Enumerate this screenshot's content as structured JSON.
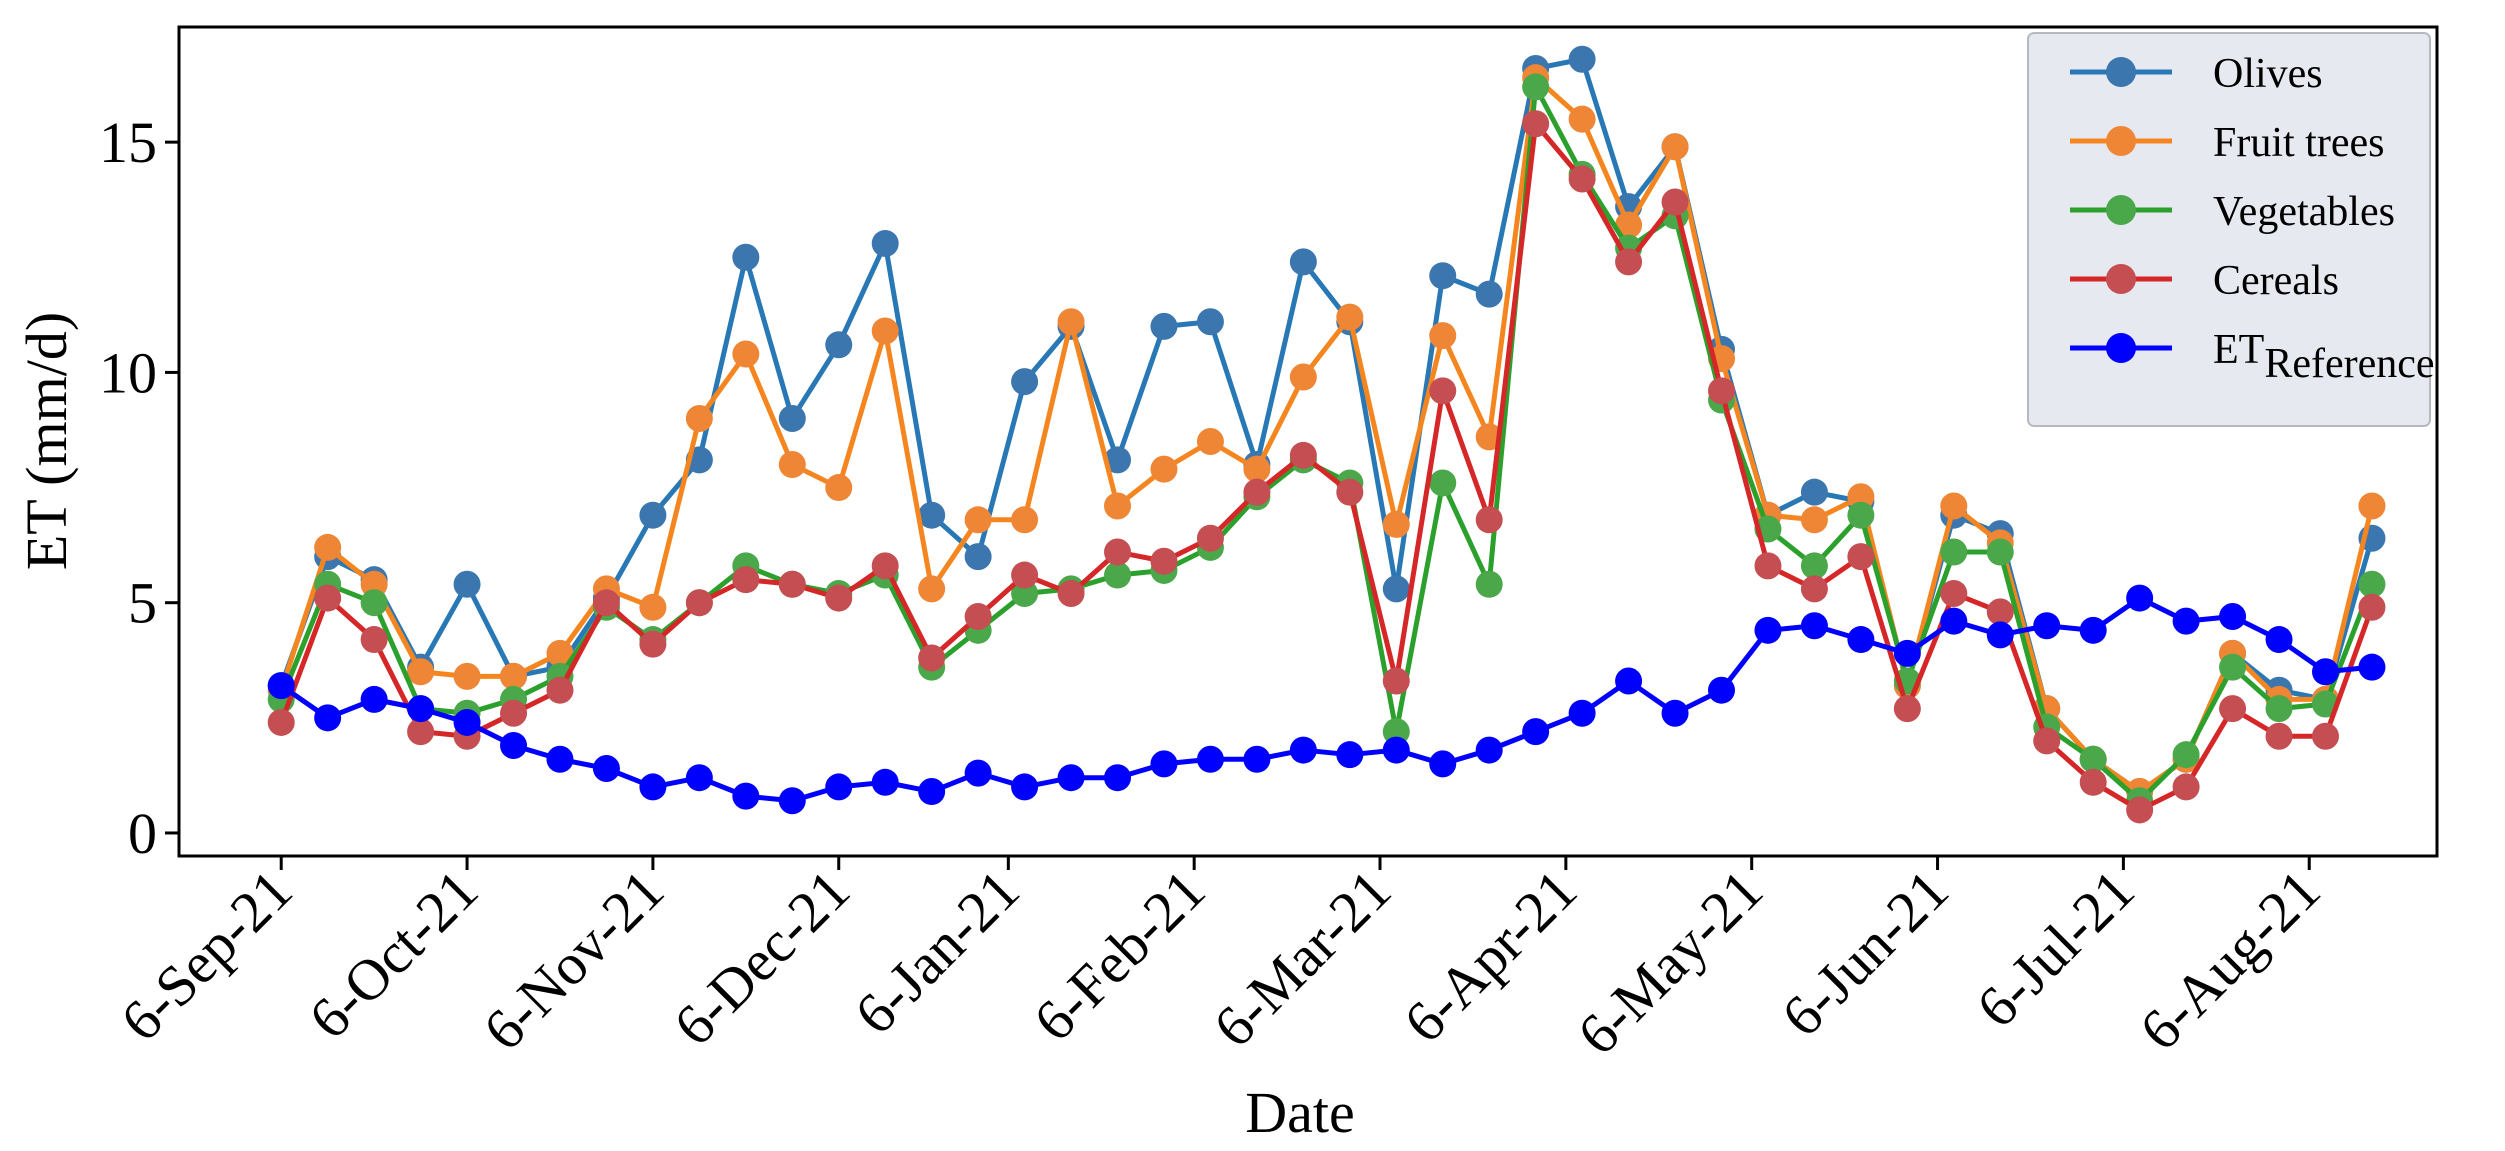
{
  "chart_data": {
    "type": "line",
    "title": "",
    "xlabel": "Date",
    "ylabel": "ET (mm/d)",
    "ylim": [
      -0.5,
      17.5
    ],
    "yticks": [
      0,
      5,
      10,
      15
    ],
    "x_index_range": [
      -2.2,
      46.4
    ],
    "xtick_labels": [
      {
        "label": "6-Sep-21",
        "index": 0
      },
      {
        "label": "6-Oct-21",
        "index": 4
      },
      {
        "label": "6-Nov-21",
        "index": 8
      },
      {
        "label": "6-Dec-21",
        "index": 12
      },
      {
        "label": "6-Jan-21",
        "index": 15.65
      },
      {
        "label": "6-Feb-21",
        "index": 19.65
      },
      {
        "label": "6-Mar-21",
        "index": 23.65
      },
      {
        "label": "6-Apr-21",
        "index": 27.65
      },
      {
        "label": "6-May-21",
        "index": 31.65
      },
      {
        "label": "6-Jun-21",
        "index": 35.65
      },
      {
        "label": "6-Jul-21",
        "index": 39.65
      },
      {
        "label": "6-Aug-21",
        "index": 43.65
      }
    ],
    "legend_position": "top-right",
    "series": [
      {
        "name": "Olives",
        "color": "#2878b5",
        "marker_color": "#3b76af",
        "values": [
          3.2,
          6.0,
          5.5,
          3.6,
          5.4,
          3.4,
          3.6,
          5.1,
          6.9,
          8.1,
          12.5,
          9.0,
          10.6,
          12.8,
          6.9,
          6.0,
          9.8,
          11.0,
          8.1,
          11.0,
          11.1,
          8.0,
          12.4,
          11.1,
          5.3,
          12.1,
          11.7,
          16.6,
          16.8,
          13.6,
          14.9,
          10.5,
          6.9,
          7.4,
          7.2,
          3.2,
          6.9,
          6.5,
          2.7,
          1.6,
          0.9,
          1.6,
          3.9,
          3.1,
          2.9,
          6.4
        ]
      },
      {
        "name": "Fruit trees",
        "color": "#f5861f",
        "marker_color": "#ef8636",
        "values": [
          3.1,
          6.2,
          5.4,
          3.5,
          3.4,
          3.4,
          3.9,
          5.3,
          4.9,
          9.0,
          10.4,
          8.0,
          7.5,
          10.9,
          5.3,
          6.8,
          6.8,
          11.1,
          7.1,
          7.9,
          8.5,
          7.9,
          9.9,
          11.2,
          6.7,
          10.8,
          8.6,
          16.4,
          15.5,
          13.2,
          14.9,
          10.3,
          6.9,
          6.8,
          7.3,
          3.2,
          7.1,
          6.3,
          2.7,
          1.6,
          0.9,
          1.6,
          3.9,
          2.9,
          2.9,
          7.1
        ]
      },
      {
        "name": "Vegetables",
        "color": "#2ca02c",
        "marker_color": "#4aa84a",
        "values": [
          2.9,
          5.4,
          5.0,
          2.7,
          2.6,
          2.9,
          3.4,
          4.9,
          4.2,
          5.0,
          5.8,
          5.4,
          5.2,
          5.6,
          3.6,
          4.4,
          5.2,
          5.3,
          5.6,
          5.7,
          6.2,
          7.3,
          8.1,
          7.6,
          2.2,
          7.6,
          5.4,
          16.2,
          14.3,
          12.7,
          13.4,
          9.4,
          6.6,
          5.8,
          6.9,
          3.3,
          6.1,
          6.1,
          2.3,
          1.6,
          0.7,
          1.7,
          3.6,
          2.7,
          2.8,
          5.4
        ]
      },
      {
        "name": "Cereals",
        "color": "#d62728",
        "marker_color": "#c44e52",
        "values": [
          2.4,
          5.1,
          4.2,
          2.2,
          2.1,
          2.6,
          3.1,
          5.0,
          4.1,
          5.0,
          5.5,
          5.4,
          5.1,
          5.8,
          3.8,
          4.7,
          5.6,
          5.2,
          6.1,
          5.9,
          6.4,
          7.4,
          8.2,
          7.4,
          3.3,
          9.6,
          6.8,
          15.4,
          14.2,
          12.4,
          13.7,
          9.6,
          5.8,
          5.3,
          6.0,
          2.7,
          5.2,
          4.8,
          2.0,
          1.1,
          0.5,
          1.0,
          2.7,
          2.1,
          2.1,
          4.9
        ]
      },
      {
        "name": "ET",
        "name_sub": "Reference",
        "color": "#0000ff",
        "marker_color": "#0000ff",
        "values": [
          3.2,
          2.5,
          2.9,
          2.7,
          2.4,
          1.9,
          1.6,
          1.4,
          1.0,
          1.2,
          0.8,
          0.7,
          1.0,
          1.1,
          0.9,
          1.3,
          1.0,
          1.2,
          1.2,
          1.5,
          1.6,
          1.6,
          1.8,
          1.7,
          1.8,
          1.5,
          1.8,
          2.2,
          2.6,
          3.3,
          2.6,
          3.1,
          4.4,
          4.5,
          4.2,
          3.9,
          4.6,
          4.3,
          4.5,
          4.4,
          5.1,
          4.6,
          4.7,
          4.2,
          3.5,
          3.6
        ]
      }
    ]
  }
}
